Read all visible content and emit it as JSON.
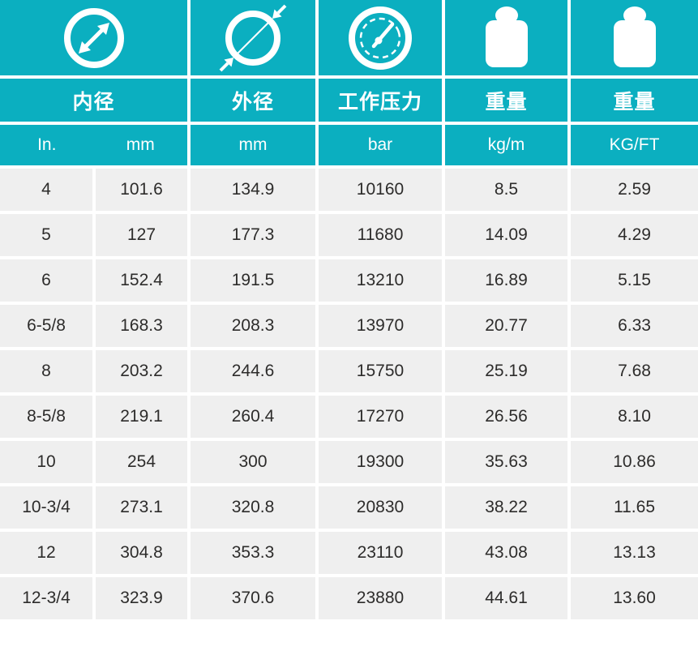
{
  "theme": {
    "accent_teal": "#0bafc0",
    "cell_gray": "#efefef",
    "data_text": "#2d2c2b",
    "header_text": "#ffffff"
  },
  "table": {
    "groups": [
      {
        "label": "内径",
        "icon": "inner-diameter-icon"
      },
      {
        "label": "外径",
        "icon": "outer-diameter-icon"
      },
      {
        "label": "工作压力",
        "icon": "pressure-gauge-icon"
      },
      {
        "label": "重量",
        "icon": "weight-icon"
      },
      {
        "label": "重量",
        "icon": "weight-icon"
      }
    ],
    "units": [
      "In.",
      "mm",
      "mm",
      "bar",
      "kg/m",
      "KG/FT"
    ],
    "rows": [
      [
        "4",
        "101.6",
        "134.9",
        "10160",
        "8.5",
        "2.59"
      ],
      [
        "5",
        "127",
        "177.3",
        "11680",
        "14.09",
        "4.29"
      ],
      [
        "6",
        "152.4",
        "191.5",
        "13210",
        "16.89",
        "5.15"
      ],
      [
        "6-5/8",
        "168.3",
        "208.3",
        "13970",
        "20.77",
        "6.33"
      ],
      [
        "8",
        "203.2",
        "244.6",
        "15750",
        "25.19",
        "7.68"
      ],
      [
        "8-5/8",
        "219.1",
        "260.4",
        "17270",
        "26.56",
        "8.10"
      ],
      [
        "10",
        "254",
        "300",
        "19300",
        "35.63",
        "10.86"
      ],
      [
        "10-3/4",
        "273.1",
        "320.8",
        "20830",
        "38.22",
        "11.65"
      ],
      [
        "12",
        "304.8",
        "353.3",
        "23110",
        "43.08",
        "13.13"
      ],
      [
        "12-3/4",
        "323.9",
        "370.6",
        "23880",
        "44.61",
        "13.60"
      ]
    ]
  }
}
